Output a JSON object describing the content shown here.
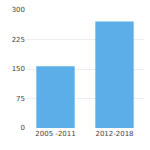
{
  "chart_data": {
    "type": "bar",
    "categories": [
      "2005 -2011",
      "2012-2018"
    ],
    "values": [
      157,
      271
    ],
    "color": "#5BAEE8",
    "ylim": [
      0,
      300
    ],
    "yticks": [
      0,
      75,
      150,
      225,
      300
    ],
    "grid": true
  }
}
